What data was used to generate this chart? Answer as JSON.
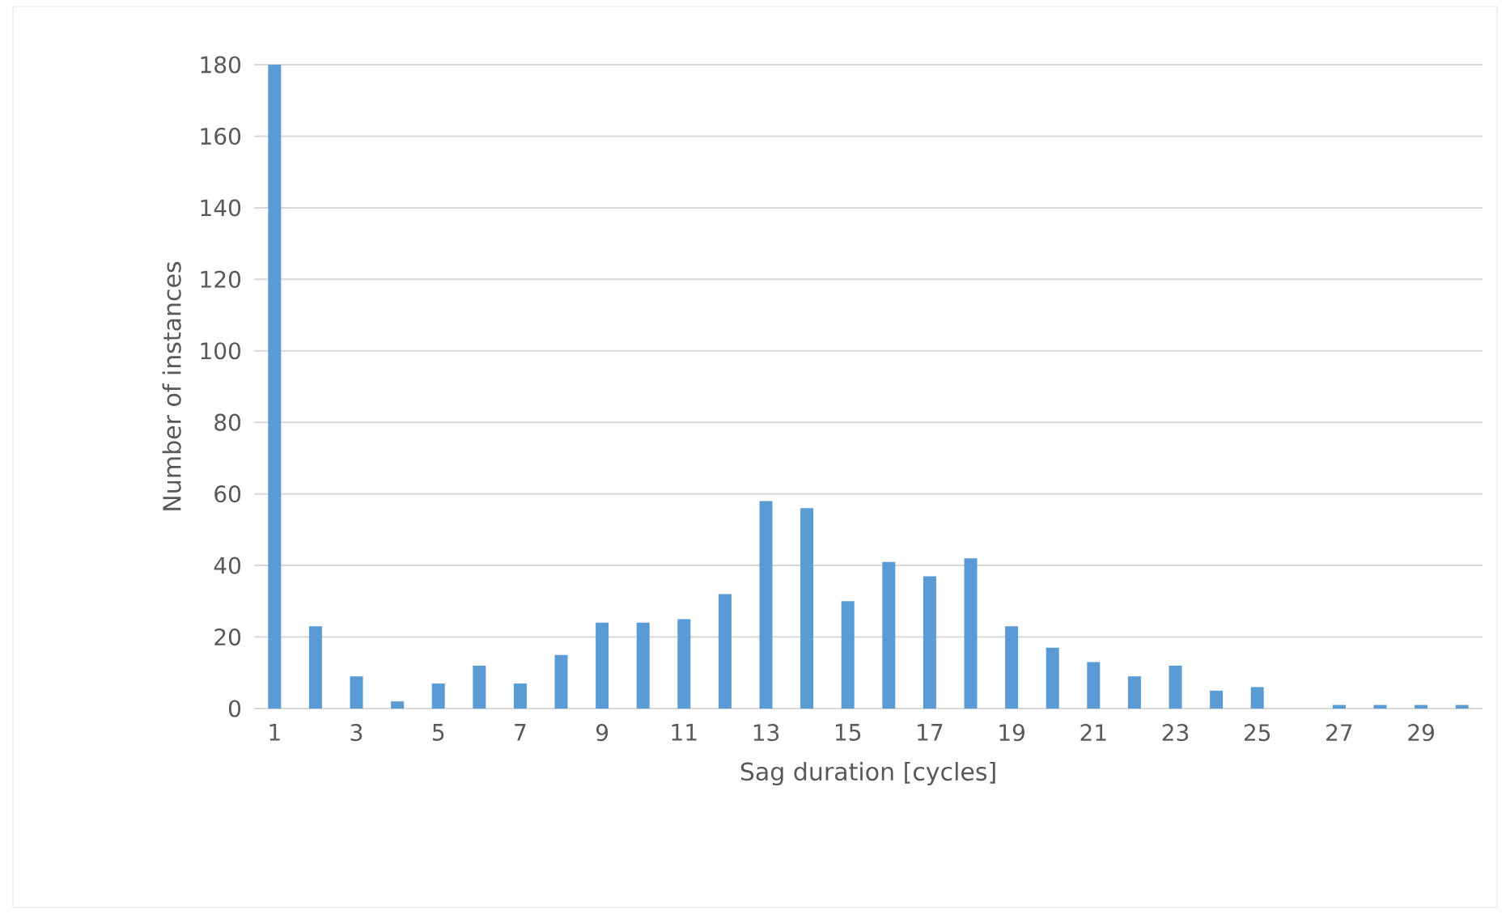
{
  "chart_data": {
    "type": "bar",
    "xlabel": "Sag duration [cycles]",
    "ylabel": "Number of instances",
    "categories": [
      "1",
      null,
      "3",
      null,
      "5",
      null,
      "7",
      null,
      "9",
      null,
      "11",
      null,
      "13",
      null,
      "15",
      null,
      "17",
      null,
      "19",
      null,
      "21",
      null,
      "23",
      null,
      "25",
      null,
      "27",
      null,
      "29",
      null
    ],
    "values": [
      180,
      23,
      9,
      2,
      7,
      12,
      7,
      15,
      24,
      24,
      25,
      32,
      58,
      56,
      30,
      41,
      37,
      42,
      23,
      17,
      13,
      9,
      12,
      5,
      6,
      0,
      1,
      1,
      1,
      1
    ],
    "color": "#5b9bd5",
    "ylim": [
      0,
      180
    ],
    "yticks": [
      0,
      20,
      40,
      60,
      80,
      100,
      120,
      140,
      160,
      180
    ],
    "grid": "y"
  }
}
